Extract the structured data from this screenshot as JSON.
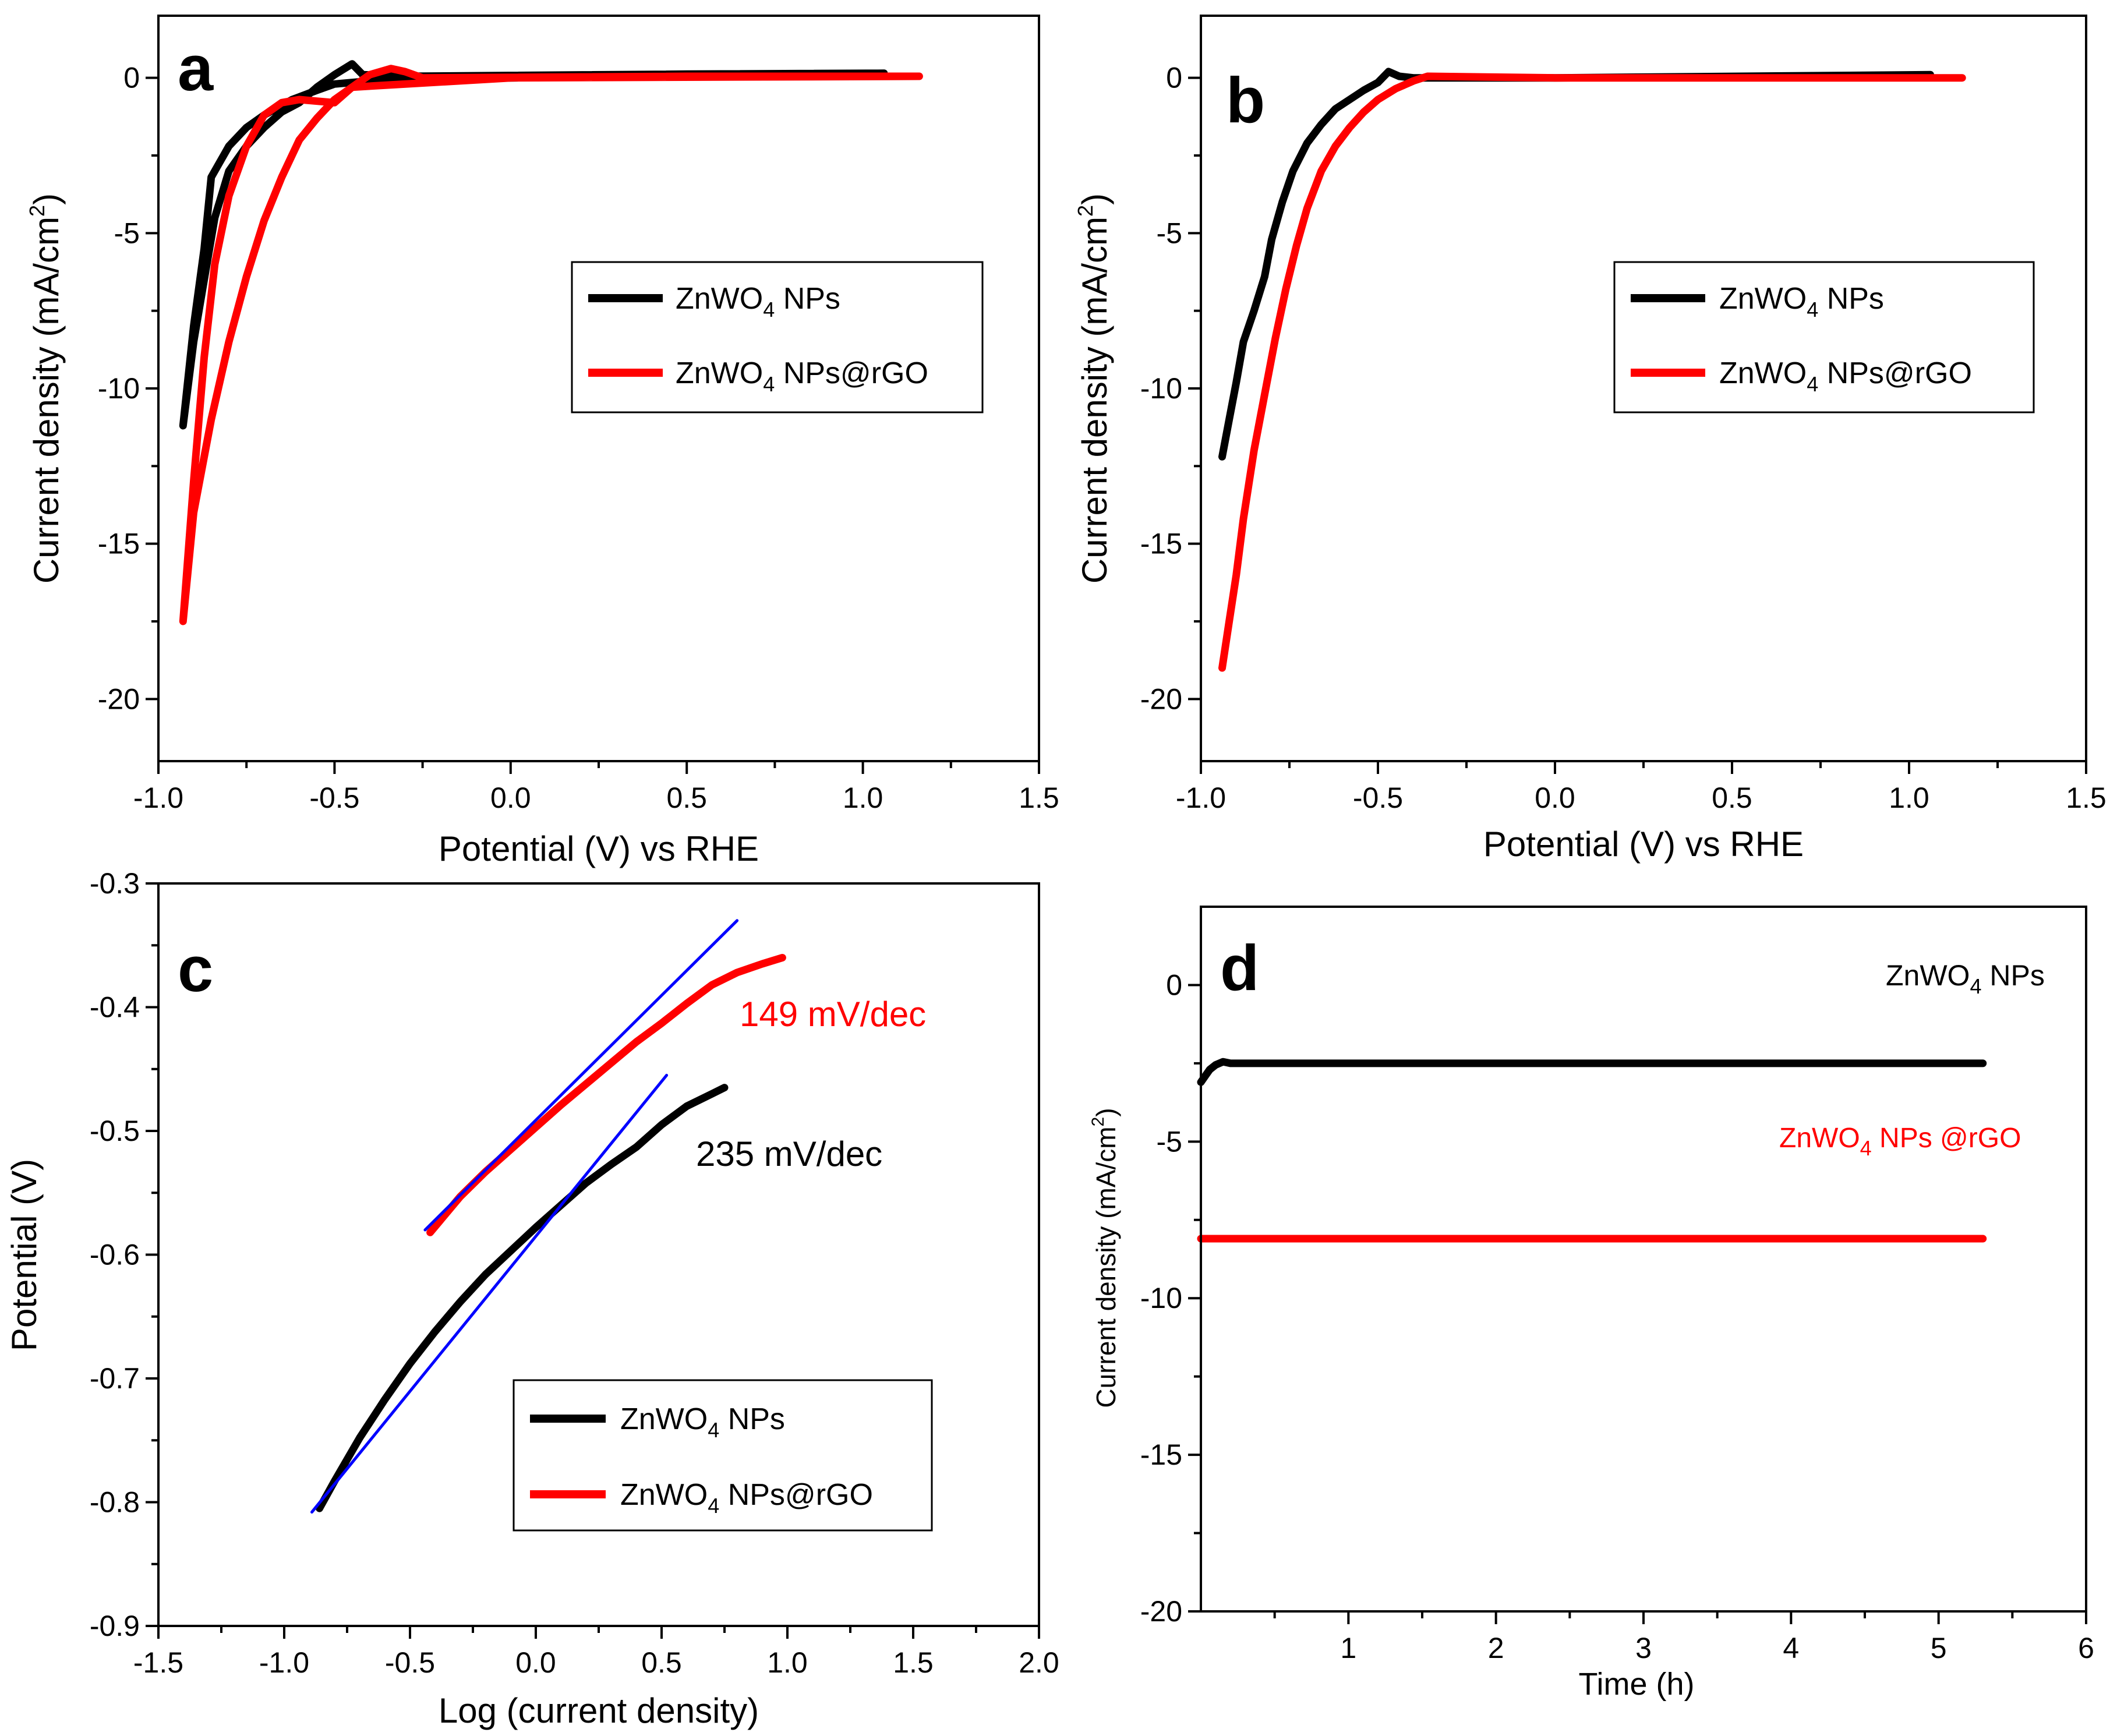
{
  "chart_data": [
    {
      "type": "line",
      "panel": "a",
      "xlabel": "Potential (V) vs RHE",
      "ylabel": "Current density (mA/cm",
      "ylabel_sup": "2",
      "ylabel_close": ")",
      "xlim": [
        -1.0,
        1.5
      ],
      "ylim": [
        -22,
        2
      ],
      "xticks": [
        -1.0,
        -0.5,
        0.0,
        0.5,
        1.0,
        1.5
      ],
      "xtick_labels": [
        "-1.0",
        "-0.5",
        "0.0",
        "0.5",
        "1.0",
        "1.5"
      ],
      "yticks": [
        0,
        -5,
        -10,
        -15,
        -20
      ],
      "ytick_labels": [
        "0",
        "-5",
        "-10",
        "-15",
        "-20"
      ],
      "legend": [
        "ZnWO4 NPs",
        "ZnWO4 NPs@rGO"
      ],
      "series": [
        {
          "name": "ZnWO4 NPs",
          "color": "#000000",
          "x": [
            1.06,
            0.5,
            -0.3,
            -0.42,
            -0.45,
            -0.5,
            -0.55,
            -0.6,
            -0.65,
            -0.7,
            -0.75,
            -0.8,
            -0.84,
            -0.87,
            -0.9,
            -0.93,
            -0.9,
            -0.87,
            -0.85,
            -0.8,
            -0.75,
            -0.7,
            -0.62,
            -0.55,
            -0.5,
            -0.4,
            0.0,
            1.06
          ],
          "y": [
            0.15,
            0.12,
            0.05,
            0.1,
            0.45,
            0.1,
            -0.3,
            -0.8,
            -1.1,
            -1.6,
            -2.2,
            -3.0,
            -4.5,
            -6.5,
            -8.5,
            -11.2,
            -8.0,
            -5.5,
            -3.2,
            -2.2,
            -1.6,
            -1.2,
            -0.7,
            -0.4,
            -0.2,
            -0.1,
            0.0,
            0.15
          ]
        },
        {
          "name": "ZnWO4 NPs@rGO",
          "color": "#ff0000",
          "x": [
            1.16,
            0.5,
            -0.25,
            -0.3,
            -0.34,
            -0.4,
            -0.45,
            -0.5,
            -0.55,
            -0.6,
            -0.65,
            -0.7,
            -0.75,
            -0.8,
            -0.85,
            -0.9,
            -0.93,
            -0.9,
            -0.87,
            -0.84,
            -0.8,
            -0.75,
            -0.7,
            -0.65,
            -0.6,
            -0.55,
            -0.5,
            -0.45,
            0.0,
            1.16
          ],
          "y": [
            0.05,
            0.05,
            0.0,
            0.2,
            0.3,
            0.1,
            -0.3,
            -0.7,
            -1.3,
            -2.0,
            -3.2,
            -4.6,
            -6.4,
            -8.5,
            -11.0,
            -14.0,
            -17.5,
            -13.0,
            -9.0,
            -6.0,
            -3.8,
            -2.2,
            -1.2,
            -0.8,
            -0.7,
            -0.75,
            -0.8,
            -0.3,
            0.0,
            0.05
          ]
        }
      ]
    },
    {
      "type": "line",
      "panel": "b",
      "xlabel": "Potential (V) vs RHE",
      "ylabel": "Current density (mA/cm",
      "ylabel_sup": "2",
      "ylabel_close": ")",
      "xlim": [
        -1.0,
        1.5
      ],
      "ylim": [
        -22,
        2
      ],
      "xticks": [
        -1.0,
        -0.5,
        0.0,
        0.5,
        1.0,
        1.5
      ],
      "xtick_labels": [
        "-1.0",
        "-0.5",
        "0.0",
        "0.5",
        "1.0",
        "1.5"
      ],
      "yticks": [
        0,
        -5,
        -10,
        -15,
        -20
      ],
      "ytick_labels": [
        "0",
        "-5",
        "-10",
        "-15",
        "-20"
      ],
      "legend": [
        "ZnWO4 NPs",
        "ZnWO4 NPs@rGO"
      ],
      "series": [
        {
          "name": "ZnWO4 NPs",
          "color": "#000000",
          "x": [
            -0.94,
            -0.92,
            -0.9,
            -0.88,
            -0.85,
            -0.82,
            -0.8,
            -0.77,
            -0.74,
            -0.7,
            -0.66,
            -0.62,
            -0.58,
            -0.54,
            -0.5,
            -0.47,
            -0.44,
            -0.4,
            0.0,
            1.06
          ],
          "y": [
            -12.2,
            -11.0,
            -9.8,
            -8.5,
            -7.5,
            -6.4,
            -5.2,
            -4.0,
            -3.0,
            -2.1,
            -1.5,
            -1.0,
            -0.7,
            -0.4,
            -0.15,
            0.2,
            0.05,
            0.0,
            0.0,
            0.1
          ]
        },
        {
          "name": "ZnWO4 NPs@rGO",
          "color": "#ff0000",
          "x": [
            -0.94,
            -0.92,
            -0.9,
            -0.88,
            -0.85,
            -0.82,
            -0.79,
            -0.76,
            -0.73,
            -0.7,
            -0.66,
            -0.62,
            -0.58,
            -0.54,
            -0.5,
            -0.45,
            -0.4,
            -0.36,
            0.0,
            1.15
          ],
          "y": [
            -19.0,
            -17.5,
            -16.0,
            -14.2,
            -12.0,
            -10.2,
            -8.4,
            -6.8,
            -5.4,
            -4.2,
            -3.0,
            -2.2,
            -1.6,
            -1.1,
            -0.7,
            -0.35,
            -0.1,
            0.05,
            0.0,
            0.0
          ]
        }
      ]
    },
    {
      "type": "line",
      "panel": "c",
      "xlabel": "Log (current density)",
      "ylabel": "Potential (V)",
      "xlim": [
        -1.5,
        2.0
      ],
      "ylim": [
        -0.9,
        -0.3
      ],
      "xticks": [
        -1.5,
        -1.0,
        -0.5,
        0.0,
        0.5,
        1.0,
        1.5,
        2.0
      ],
      "xtick_labels": [
        "-1.5",
        "-1.0",
        "-0.5",
        "0.0",
        "0.5",
        "1.0",
        "1.5",
        "2.0"
      ],
      "yticks": [
        -0.3,
        -0.4,
        -0.5,
        -0.6,
        -0.7,
        -0.8,
        -0.9
      ],
      "ytick_labels": [
        "-0.3",
        "-0.4",
        "-0.5",
        "-0.6",
        "-0.7",
        "-0.8",
        "-0.9"
      ],
      "legend": [
        "ZnWO4 NPs",
        "ZnWO4 NPs@rGO"
      ],
      "annotations": [
        "149 mV/dec",
        "235 mV/dec"
      ],
      "series": [
        {
          "name": "ZnWO4 NPs",
          "color": "#000000",
          "x": [
            -0.86,
            -0.8,
            -0.7,
            -0.6,
            -0.5,
            -0.4,
            -0.3,
            -0.2,
            -0.1,
            0.0,
            0.1,
            0.2,
            0.3,
            0.4,
            0.5,
            0.6,
            0.7,
            0.75
          ],
          "y": [
            -0.805,
            -0.783,
            -0.748,
            -0.717,
            -0.688,
            -0.662,
            -0.638,
            -0.616,
            -0.597,
            -0.578,
            -0.56,
            -0.542,
            -0.527,
            -0.513,
            -0.495,
            -0.48,
            -0.47,
            -0.465
          ]
        },
        {
          "name": "ZnWO4 NPs@rGO",
          "color": "#ff0000",
          "x": [
            -0.42,
            -0.3,
            -0.2,
            -0.1,
            0.0,
            0.1,
            0.2,
            0.3,
            0.4,
            0.5,
            0.6,
            0.7,
            0.8,
            0.9,
            0.98
          ],
          "y": [
            -0.582,
            -0.553,
            -0.533,
            -0.515,
            -0.497,
            -0.479,
            -0.462,
            -0.445,
            -0.428,
            -0.413,
            -0.397,
            -0.382,
            -0.372,
            -0.365,
            -0.36
          ]
        },
        {
          "name": "Fit (ZnWO4 NPs)",
          "color": "#0000ff",
          "x": [
            -0.89,
            0.52
          ],
          "y": [
            -0.808,
            -0.455
          ]
        },
        {
          "name": "Fit (ZnWO4 NPs@rGO)",
          "color": "#0000ff",
          "x": [
            -0.44,
            0.8
          ],
          "y": [
            -0.58,
            -0.33
          ]
        }
      ]
    },
    {
      "type": "line",
      "panel": "d",
      "xlabel": "Time (h)",
      "ylabel": "Current density (mA/cm",
      "ylabel_sup": "2",
      "ylabel_close": ")",
      "xlim": [
        0,
        6
      ],
      "ylim": [
        -20,
        2.5
      ],
      "xticks": [
        1,
        2,
        3,
        4,
        5,
        6
      ],
      "xtick_labels": [
        "1",
        "2",
        "3",
        "4",
        "5",
        "6"
      ],
      "yticks": [
        0,
        -5,
        -10,
        -15,
        -20
      ],
      "ytick_labels": [
        "0",
        "-5",
        "-10",
        "-15",
        "-20"
      ],
      "labels": [
        "ZnWO4 NPs",
        "ZnWO4 NPs @rGO"
      ],
      "series": [
        {
          "name": "ZnWO4 NPs",
          "color": "#000000",
          "x": [
            0.0,
            0.03,
            0.06,
            0.1,
            0.15,
            0.2,
            1.0,
            2.0,
            3.0,
            4.0,
            5.0,
            5.3
          ],
          "y": [
            -3.1,
            -2.9,
            -2.7,
            -2.55,
            -2.45,
            -2.5,
            -2.5,
            -2.5,
            -2.5,
            -2.5,
            -2.5,
            -2.5
          ]
        },
        {
          "name": "ZnWO4 NPs @rGO",
          "color": "#ff0000",
          "x": [
            0.0,
            1.0,
            2.0,
            3.0,
            4.0,
            5.0,
            5.3
          ],
          "y": [
            -8.1,
            -8.1,
            -8.1,
            -8.1,
            -8.1,
            -8.1,
            -8.1
          ]
        }
      ]
    }
  ]
}
